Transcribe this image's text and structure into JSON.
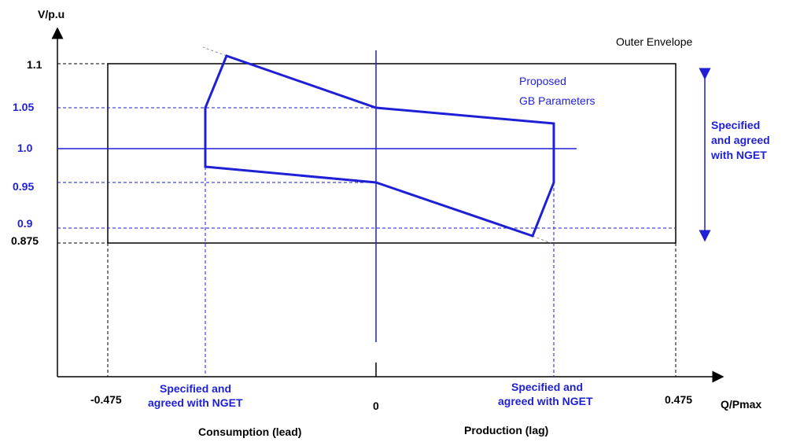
{
  "axes": {
    "y_axis_label": "V/p.u",
    "x_axis_label": "Q/Pmax"
  },
  "y_ticks": [
    {
      "label": "1.1",
      "value": 1.1,
      "color": "#000000"
    },
    {
      "label": "1.05",
      "value": 1.05,
      "color": "#1f1fd6"
    },
    {
      "label": "1.0",
      "value": 1.0,
      "color": "#1f1fd6"
    },
    {
      "label": "0.95",
      "value": 0.95,
      "color": "#1f1fd6"
    },
    {
      "label": "0.9",
      "value": 0.9,
      "color": "#1f1fd6"
    },
    {
      "label": "0.875",
      "value": 0.875,
      "color": "#000000"
    }
  ],
  "x_ticks": [
    {
      "label": "-0.475",
      "value": -0.475
    },
    {
      "label": "0",
      "value": 0
    },
    {
      "label": "0.475",
      "value": 0.475
    }
  ],
  "annotations": {
    "outer_envelope": "Outer Envelope",
    "proposed_line1": "Proposed",
    "proposed_line2": "GB Parameters",
    "right_arrow_line1": "Specified",
    "right_arrow_line2": "and agreed",
    "right_arrow_line3": "with NGET",
    "left_spec_line1": "Specified and",
    "left_spec_line2": "agreed with NGET",
    "right_spec_line1": "Specified and",
    "right_spec_line2": "agreed with NGET",
    "consumption": "Consumption  (lead)",
    "production": "Production  (lag)"
  },
  "colors": {
    "blue": "#1f1fd6",
    "black": "#000000",
    "gray": "#888888"
  }
}
